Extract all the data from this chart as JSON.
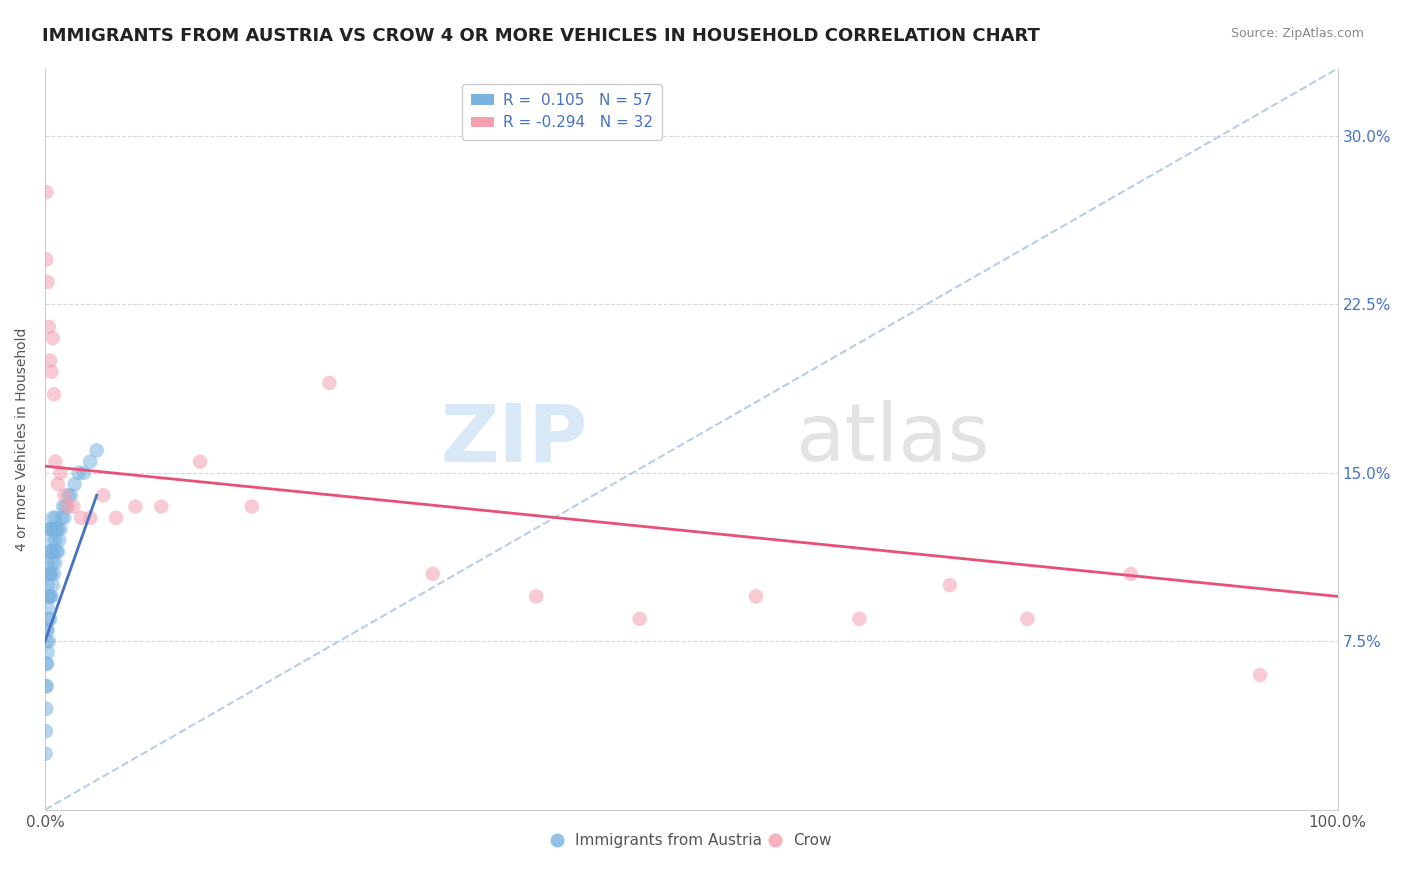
{
  "title": "IMMIGRANTS FROM AUSTRIA VS CROW 4 OR MORE VEHICLES IN HOUSEHOLD CORRELATION CHART",
  "source": "Source: ZipAtlas.com",
  "ylabel": "4 or more Vehicles in Household",
  "yticks": [
    "7.5%",
    "15.0%",
    "22.5%",
    "30.0%"
  ],
  "ytick_values": [
    0.075,
    0.15,
    0.225,
    0.3
  ],
  "xlim": [
    0.0,
    1.0
  ],
  "ylim": [
    0.0,
    0.33
  ],
  "legend_entries": [
    {
      "label": "R =  0.105   N = 57",
      "color": "#aec6e8"
    },
    {
      "label": "R = -0.294   N = 32",
      "color": "#f4b8c1"
    }
  ],
  "legend_labels": [
    "Immigrants from Austria",
    "Crow"
  ],
  "blue_scatter_x": [
    0.0005,
    0.0007,
    0.001,
    0.001,
    0.001,
    0.001,
    0.0012,
    0.0015,
    0.0015,
    0.002,
    0.002,
    0.002,
    0.002,
    0.002,
    0.0025,
    0.003,
    0.003,
    0.003,
    0.003,
    0.003,
    0.003,
    0.004,
    0.004,
    0.004,
    0.004,
    0.004,
    0.005,
    0.005,
    0.005,
    0.005,
    0.006,
    0.006,
    0.006,
    0.006,
    0.007,
    0.007,
    0.007,
    0.008,
    0.008,
    0.008,
    0.009,
    0.009,
    0.01,
    0.01,
    0.011,
    0.012,
    0.013,
    0.014,
    0.015,
    0.016,
    0.018,
    0.02,
    0.023,
    0.026,
    0.03,
    0.035,
    0.04
  ],
  "blue_scatter_y": [
    0.025,
    0.035,
    0.045,
    0.055,
    0.065,
    0.075,
    0.055,
    0.065,
    0.08,
    0.07,
    0.08,
    0.09,
    0.1,
    0.11,
    0.095,
    0.075,
    0.085,
    0.095,
    0.105,
    0.115,
    0.125,
    0.085,
    0.095,
    0.105,
    0.115,
    0.125,
    0.095,
    0.105,
    0.115,
    0.125,
    0.1,
    0.11,
    0.12,
    0.13,
    0.105,
    0.115,
    0.125,
    0.11,
    0.12,
    0.13,
    0.115,
    0.125,
    0.115,
    0.125,
    0.12,
    0.125,
    0.13,
    0.135,
    0.13,
    0.135,
    0.14,
    0.14,
    0.145,
    0.15,
    0.15,
    0.155,
    0.16
  ],
  "pink_scatter_x": [
    0.001,
    0.001,
    0.002,
    0.003,
    0.004,
    0.005,
    0.006,
    0.007,
    0.008,
    0.01,
    0.012,
    0.015,
    0.018,
    0.022,
    0.028,
    0.035,
    0.045,
    0.055,
    0.07,
    0.09,
    0.12,
    0.16,
    0.22,
    0.3,
    0.38,
    0.46,
    0.55,
    0.63,
    0.7,
    0.76,
    0.84,
    0.94
  ],
  "pink_scatter_y": [
    0.275,
    0.245,
    0.235,
    0.215,
    0.2,
    0.195,
    0.21,
    0.185,
    0.155,
    0.145,
    0.15,
    0.14,
    0.135,
    0.135,
    0.13,
    0.13,
    0.14,
    0.13,
    0.135,
    0.135,
    0.155,
    0.135,
    0.19,
    0.105,
    0.095,
    0.085,
    0.095,
    0.085,
    0.1,
    0.085,
    0.105,
    0.06
  ],
  "blue_line_x": [
    0.0,
    0.04
  ],
  "blue_line_y": [
    0.075,
    0.14
  ],
  "pink_line_x": [
    0.0,
    1.0
  ],
  "pink_line_y": [
    0.153,
    0.095
  ],
  "diag_line_x": [
    0.0,
    1.0
  ],
  "diag_line_y": [
    0.0,
    0.33
  ],
  "dot_alpha": 0.55,
  "dot_size": 110,
  "blue_color": "#7ab3e0",
  "pink_color": "#f4a0b0",
  "blue_line_color": "#4472c4",
  "pink_line_color": "#e8507a",
  "diag_line_color": "#b0c8e8",
  "background_color": "#ffffff",
  "grid_color": "#d8d8d8",
  "title_fontsize": 13,
  "axis_label_fontsize": 10,
  "tick_fontsize": 11
}
